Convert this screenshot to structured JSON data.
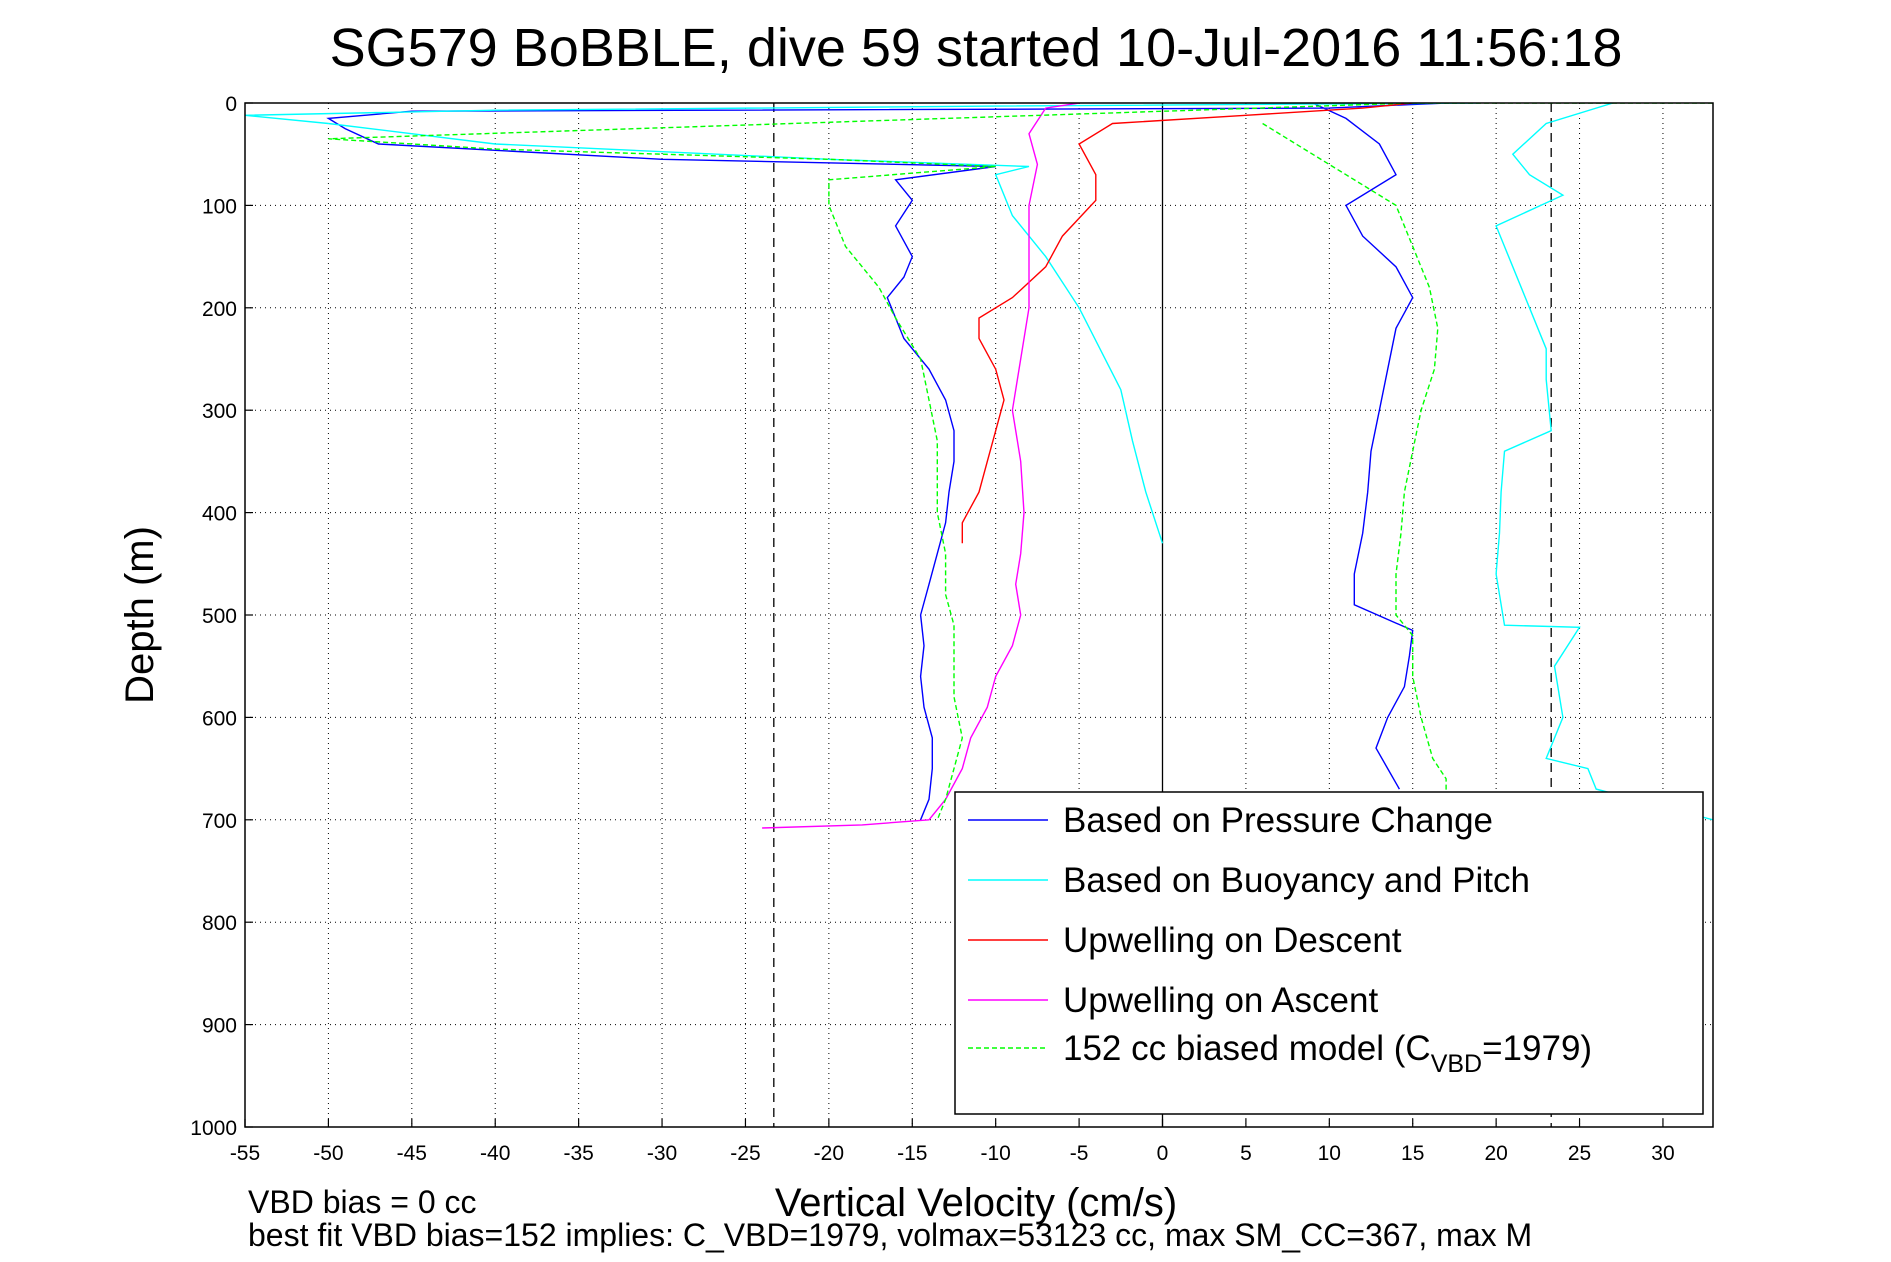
{
  "chart_data": {
    "type": "line",
    "title": "SG579 BoBBLE, dive 59 started 10-Jul-2016 11:56:18",
    "xlabel": "Vertical Velocity (cm/s)",
    "ylabel": "Depth (m)",
    "xlim": [
      -55,
      33
    ],
    "ylim": [
      0,
      1000
    ],
    "y_reversed": true,
    "grid": true,
    "xticks": [
      -55,
      -50,
      -45,
      -40,
      -35,
      -30,
      -25,
      -20,
      -15,
      -10,
      -5,
      0,
      5,
      10,
      15,
      20,
      25,
      30
    ],
    "yticks": [
      0,
      100,
      200,
      300,
      400,
      500,
      600,
      700,
      800,
      900,
      1000
    ],
    "legend_position": "bottom-right",
    "reference_lines": {
      "vertical_dashed": [
        -23.3,
        23.3
      ],
      "vertical_solid": [
        0
      ]
    },
    "series": [
      {
        "name": "Based on Pressure Change",
        "color": "#0000ff",
        "style": "solid",
        "points": [
          [
            17,
            0
          ],
          [
            10,
            5
          ],
          [
            -45,
            8
          ],
          [
            -50,
            15
          ],
          [
            -49,
            25
          ],
          [
            -47,
            40
          ],
          [
            -30,
            55
          ],
          [
            -10,
            62
          ],
          [
            -16,
            75
          ],
          [
            -15,
            95
          ],
          [
            -16,
            120
          ],
          [
            -15,
            150
          ],
          [
            -15.5,
            170
          ],
          [
            -16.5,
            190
          ],
          [
            -16,
            210
          ],
          [
            -15.5,
            230
          ],
          [
            -14,
            260
          ],
          [
            -13,
            290
          ],
          [
            -12.5,
            320
          ],
          [
            -12.5,
            350
          ],
          [
            -12.8,
            380
          ],
          [
            -13,
            410
          ],
          [
            -13.5,
            440
          ],
          [
            -14,
            470
          ],
          [
            -14.5,
            500
          ],
          [
            -14.3,
            530
          ],
          [
            -14.5,
            560
          ],
          [
            -14.3,
            590
          ],
          [
            -13.8,
            620
          ],
          [
            -13.8,
            650
          ],
          [
            -14,
            680
          ],
          [
            -14.5,
            700
          ],
          [
            9,
            0
          ],
          [
            11,
            15
          ],
          [
            13,
            40
          ],
          [
            14,
            70
          ],
          [
            11,
            100
          ],
          [
            12,
            130
          ],
          [
            14,
            160
          ],
          [
            15,
            190
          ],
          [
            14,
            220
          ],
          [
            13.5,
            260
          ],
          [
            13,
            300
          ],
          [
            12.5,
            340
          ],
          [
            12.3,
            380
          ],
          [
            12,
            420
          ],
          [
            11.5,
            460
          ],
          [
            11.5,
            490
          ],
          [
            15,
            515
          ],
          [
            14.8,
            540
          ],
          [
            14.5,
            570
          ],
          [
            13.5,
            600
          ],
          [
            12.8,
            630
          ],
          [
            13.5,
            650
          ],
          [
            14.2,
            670
          ]
        ]
      },
      {
        "name": "Based on Buoyancy and Pitch",
        "color": "#00ffff",
        "style": "solid",
        "points": [
          [
            19,
            0
          ],
          [
            -10,
            3
          ],
          [
            -40,
            7
          ],
          [
            -55,
            12
          ],
          [
            -50,
            20
          ],
          [
            -40,
            40
          ],
          [
            -20,
            55
          ],
          [
            -8,
            62
          ],
          [
            -10,
            70
          ],
          [
            -9,
            110
          ],
          [
            -7,
            150
          ],
          [
            -5,
            200
          ],
          [
            -2.5,
            280
          ],
          [
            -1.8,
            330
          ],
          [
            -1,
            380
          ],
          [
            0,
            430
          ],
          [
            27,
            0
          ],
          [
            23,
            20
          ],
          [
            21,
            50
          ],
          [
            22,
            70
          ],
          [
            24,
            90
          ],
          [
            20,
            120
          ],
          [
            21,
            160
          ],
          [
            22,
            200
          ],
          [
            23,
            240
          ],
          [
            23,
            270
          ],
          [
            23.3,
            320
          ],
          [
            20.5,
            340
          ],
          [
            20.3,
            380
          ],
          [
            20.2,
            420
          ],
          [
            20,
            460
          ],
          [
            20.5,
            510
          ],
          [
            25,
            512
          ],
          [
            23.5,
            550
          ],
          [
            24,
            600
          ],
          [
            23,
            640
          ],
          [
            25.5,
            650
          ],
          [
            26,
            670
          ],
          [
            33,
            700
          ]
        ]
      },
      {
        "name": "Upwelling on Descent",
        "color": "#ff0000",
        "style": "solid",
        "points": [
          [
            15,
            0
          ],
          [
            12,
            5
          ],
          [
            5,
            12
          ],
          [
            -3,
            20
          ],
          [
            -5,
            40
          ],
          [
            -4,
            70
          ],
          [
            -4,
            95
          ],
          [
            -6,
            130
          ],
          [
            -7,
            160
          ],
          [
            -9,
            190
          ],
          [
            -11,
            210
          ],
          [
            -11,
            230
          ],
          [
            -10,
            260
          ],
          [
            -9.5,
            290
          ],
          [
            -10,
            320
          ],
          [
            -10.5,
            350
          ],
          [
            -11,
            380
          ],
          [
            -12,
            410
          ],
          [
            -12,
            430
          ]
        ]
      },
      {
        "name": "Upwelling on Ascent",
        "color": "#ff00ff",
        "style": "solid",
        "points": [
          [
            -5,
            0
          ],
          [
            -7,
            5
          ],
          [
            -8,
            30
          ],
          [
            -7.5,
            60
          ],
          [
            -8,
            100
          ],
          [
            -8,
            150
          ],
          [
            -8,
            200
          ],
          [
            -8.5,
            250
          ],
          [
            -9,
            300
          ],
          [
            -8.5,
            350
          ],
          [
            -8.3,
            400
          ],
          [
            -8.5,
            440
          ],
          [
            -8.8,
            470
          ],
          [
            -8.5,
            500
          ],
          [
            -9,
            530
          ],
          [
            -10,
            560
          ],
          [
            -10.5,
            590
          ],
          [
            -11.5,
            620
          ],
          [
            -12,
            650
          ],
          [
            -13,
            680
          ],
          [
            -14,
            700
          ],
          [
            -18,
            705
          ],
          [
            -24,
            708
          ]
        ]
      },
      {
        "name": "152 cc biased model (C",
        "name_sub": "VBD",
        "name_suffix": "=1979)",
        "color": "#00ff00",
        "style": "dashed",
        "points": [
          [
            33,
            0
          ],
          [
            15,
            0
          ],
          [
            -50,
            35
          ],
          [
            -40,
            45
          ],
          [
            -20,
            55
          ],
          [
            -10,
            62
          ],
          [
            -20,
            75
          ],
          [
            -20,
            100
          ],
          [
            -19,
            140
          ],
          [
            -17,
            180
          ],
          [
            -16,
            210
          ],
          [
            -14.5,
            250
          ],
          [
            -14,
            290
          ],
          [
            -13.5,
            330
          ],
          [
            -13.5,
            360
          ],
          [
            -13.5,
            400
          ],
          [
            -13,
            440
          ],
          [
            -13,
            480
          ],
          [
            -12.5,
            510
          ],
          [
            -12.5,
            540
          ],
          [
            -12.5,
            580
          ],
          [
            -12,
            620
          ],
          [
            -12.5,
            650
          ],
          [
            -13,
            680
          ],
          [
            -13.5,
            700
          ],
          [
            6,
            20
          ],
          [
            8,
            40
          ],
          [
            11,
            70
          ],
          [
            14,
            100
          ],
          [
            15,
            140
          ],
          [
            16,
            180
          ],
          [
            16.5,
            220
          ],
          [
            16.3,
            260
          ],
          [
            15.5,
            300
          ],
          [
            15,
            340
          ],
          [
            14.5,
            380
          ],
          [
            14.3,
            420
          ],
          [
            14,
            460
          ],
          [
            14,
            500
          ],
          [
            15,
            520
          ],
          [
            15,
            560
          ],
          [
            15.5,
            600
          ],
          [
            16.2,
            640
          ],
          [
            17,
            660
          ],
          [
            17,
            680
          ]
        ]
      }
    ],
    "footer_lines": [
      "VBD bias = 0 cc",
      "best fit VBD bias=152 implies: C_VBD=1979, volmax=53123 cc, max SM_CC=367, max M"
    ]
  }
}
